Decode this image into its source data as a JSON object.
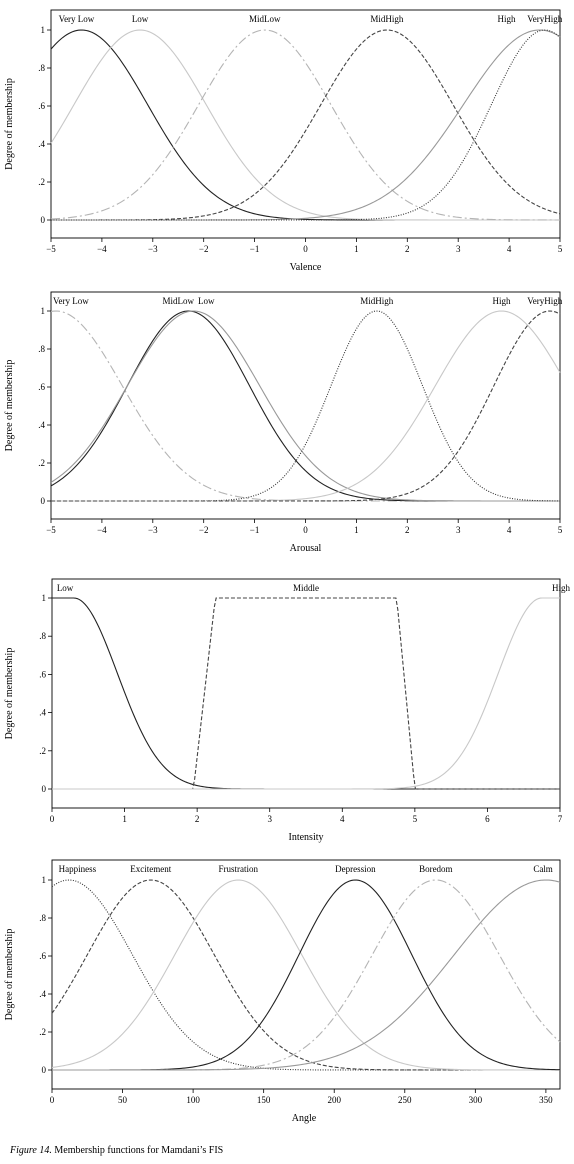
{
  "y_tick_labels": [
    "0",
    ".2",
    ".4",
    ".6",
    ".8",
    "1"
  ],
  "caption": {
    "label": "Figure 14.",
    "text": " Membership functions for Mamdani’s FIS"
  },
  "chart_data": [
    {
      "type": "line",
      "xlabel": "Valence",
      "ylabel": "Degree of membership",
      "xlim": [
        -5,
        5
      ],
      "ylim": [
        0,
        1
      ],
      "xticks": [
        -5,
        -4,
        -3,
        -2,
        -1,
        0,
        1,
        2,
        3,
        4,
        5
      ],
      "xtick_labels": [
        "−5",
        "−4",
        "−3",
        "−2",
        "−1",
        "0",
        "1",
        "2",
        "3",
        "4",
        "5"
      ],
      "grid": false,
      "series": [
        {
          "name": "Very Low",
          "kind": "gauss",
          "mean": -4.4,
          "sigma": 1.3,
          "color": "#222222",
          "dash": "",
          "label_x": -4.5
        },
        {
          "name": "Low",
          "kind": "gauss",
          "mean": -3.25,
          "sigma": 1.3,
          "color": "#c8c8c8",
          "dash": "",
          "label_x": -3.25
        },
        {
          "name": "MidLow",
          "kind": "gauss",
          "mean": -0.8,
          "sigma": 1.3,
          "color": "#b4b4b4",
          "dash": "9,3,2,3",
          "label_x": -0.8
        },
        {
          "name": "MidHigh",
          "kind": "gauss",
          "mean": 1.6,
          "sigma": 1.3,
          "color": "#444444",
          "dash": "4,2",
          "label_x": 1.6
        },
        {
          "name": "High",
          "kind": "gauss",
          "mean": 4.6,
          "sigma": 1.5,
          "color": "#999999",
          "dash": "",
          "label_x": 3.95
        },
        {
          "name": "VeryHigh",
          "kind": "gauss",
          "mean": 4.7,
          "sigma": 1.05,
          "color": "#333333",
          "dash": "1,1.5",
          "label_x": 4.7
        }
      ]
    },
    {
      "type": "line",
      "xlabel": "Arousal",
      "ylabel": "Degree of membership",
      "xlim": [
        -5,
        5
      ],
      "ylim": [
        0,
        1
      ],
      "xticks": [
        -5,
        -4,
        -3,
        -2,
        -1,
        0,
        1,
        2,
        3,
        4,
        5
      ],
      "xtick_labels": [
        "−5",
        "−4",
        "−3",
        "−2",
        "−1",
        "0",
        "1",
        "2",
        "3",
        "4",
        "5"
      ],
      "grid": false,
      "series": [
        {
          "name": "Very Low",
          "kind": "gauss",
          "mean": -4.9,
          "sigma": 1.3,
          "color": "#b4b4b4",
          "dash": "9,3,2,3",
          "label_x": -4.95
        },
        {
          "name": "MidLow",
          "kind": "gauss",
          "mean": -2.3,
          "sigma": 1.2,
          "color": "#222222",
          "dash": "",
          "label_x": -2.5
        },
        {
          "name": "Low",
          "kind": "gauss",
          "mean": -2.2,
          "sigma": 1.3,
          "color": "#999999",
          "dash": "",
          "label_x": -1.95
        },
        {
          "name": "MidHigh",
          "kind": "gauss",
          "mean": 1.4,
          "sigma": 0.9,
          "color": "#333333",
          "dash": "1,1.5",
          "label_x": 1.4
        },
        {
          "name": "High",
          "kind": "gauss",
          "mean": 3.85,
          "sigma": 1.3,
          "color": "#c8c8c8",
          "dash": "",
          "label_x": 3.85
        },
        {
          "name": "VeryHigh",
          "kind": "gauss",
          "mean": 4.8,
          "sigma": 1.1,
          "color": "#444444",
          "dash": "4,2",
          "label_x": 4.7
        }
      ]
    },
    {
      "type": "line",
      "xlabel": "Intensity",
      "ylabel": "Degree of membership",
      "xlim": [
        0,
        7
      ],
      "ylim": [
        0,
        1
      ],
      "xticks": [
        0,
        1,
        2,
        3,
        4,
        5,
        6,
        7
      ],
      "xtick_labels": [
        "0",
        "1",
        "2",
        "3",
        "4",
        "5",
        "6",
        "7"
      ],
      "grid": false,
      "series": [
        {
          "name": "Low",
          "kind": "zmf",
          "a": 0.3,
          "b": 1.25,
          "sigma": 0.6,
          "color": "#222222",
          "dash": "",
          "label_x": 0.18
        },
        {
          "name": "Middle",
          "kind": "trap",
          "points": [
            1.95,
            2.25,
            4.75,
            5.0
          ],
          "color": "#444444",
          "dash": "4,2",
          "label_x": 3.5
        },
        {
          "name": "High",
          "kind": "smf",
          "a": 6.75,
          "b": 5.75,
          "sigma": 0.6,
          "color": "#c8c8c8",
          "dash": "",
          "label_x": 7.0
        }
      ]
    },
    {
      "type": "line",
      "xlabel": "Angle",
      "ylabel": "Degree of membership",
      "xlim": [
        0,
        360
      ],
      "ylim": [
        0,
        1
      ],
      "xticks": [
        0,
        50,
        100,
        150,
        200,
        250,
        300,
        350
      ],
      "xtick_labels": [
        "0",
        "50",
        "100",
        "150",
        "200",
        "250",
        "300",
        "350"
      ],
      "grid": false,
      "series": [
        {
          "name": "Happiness",
          "kind": "gauss",
          "mean": 12,
          "sigma": 45,
          "color": "#333333",
          "dash": "1,1.5",
          "label_x": 18
        },
        {
          "name": "Excitement",
          "kind": "gauss",
          "mean": 70,
          "sigma": 45,
          "color": "#444444",
          "dash": "4,2",
          "label_x": 70
        },
        {
          "name": "Frustration",
          "kind": "gauss",
          "mean": 132,
          "sigma": 45,
          "color": "#c8c8c8",
          "dash": "",
          "label_x": 132
        },
        {
          "name": "Depression",
          "kind": "gauss",
          "mean": 215,
          "sigma": 40,
          "color": "#222222",
          "dash": "",
          "label_x": 215
        },
        {
          "name": "Boredom",
          "kind": "gauss",
          "mean": 272,
          "sigma": 45,
          "color": "#b4b4b4",
          "dash": "9,3,2,3",
          "label_x": 272
        },
        {
          "name": "Calm",
          "kind": "gauss",
          "mean": 350,
          "sigma": 65,
          "color": "#999999",
          "dash": "",
          "label_x": 348
        }
      ]
    }
  ]
}
